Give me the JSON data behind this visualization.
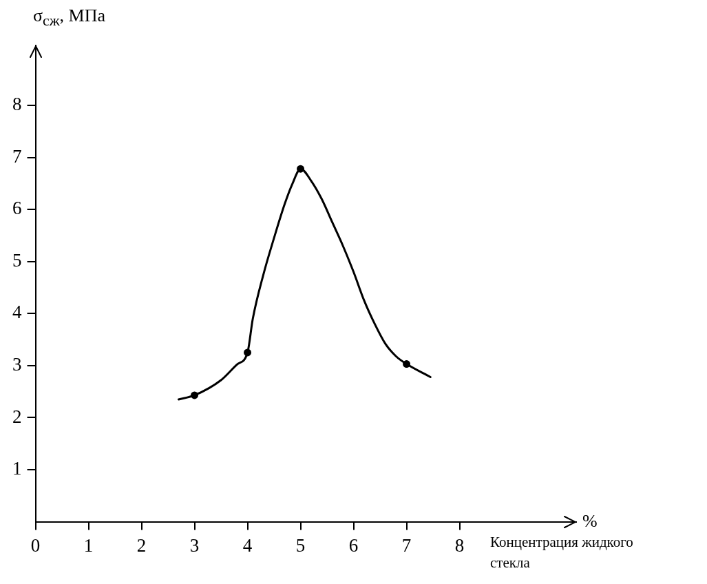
{
  "chart_data": {
    "type": "line",
    "ylabel": "σ$_{сж}$, МПа",
    "xlabel": "%",
    "annotations": [
      "Концентрация жидкого стекла"
    ],
    "xlim": [
      0,
      10.2
    ],
    "ylim": [
      0,
      9.15
    ],
    "xticks": [
      0,
      1,
      2,
      3,
      4,
      5,
      6,
      7,
      8
    ],
    "yticks": [
      1,
      2,
      3,
      4,
      5,
      6,
      7,
      8
    ],
    "grid": false,
    "legend": false,
    "series": [
      {
        "type": "line",
        "color": "#000000",
        "marker": "none",
        "x": [
          2.7,
          3,
          3.5,
          3.8,
          4,
          4.1,
          4.3,
          4.5,
          4.7,
          4.85,
          5,
          5.2,
          5.4,
          5.6,
          5.8,
          6,
          6.2,
          6.4,
          6.6,
          6.8,
          7,
          7.45
        ],
        "values": [
          2.35,
          2.43,
          2.72,
          3.02,
          3.25,
          3.9,
          4.75,
          5.45,
          6.1,
          6.5,
          6.78,
          6.55,
          6.2,
          5.75,
          5.3,
          4.8,
          4.25,
          3.8,
          3.42,
          3.18,
          3.03,
          2.78
        ]
      },
      {
        "type": "scatter",
        "color": "#000000",
        "marker": "circle",
        "x": [
          3,
          4,
          5,
          7
        ],
        "values": [
          2.43,
          3.25,
          6.78,
          3.03
        ]
      }
    ]
  }
}
